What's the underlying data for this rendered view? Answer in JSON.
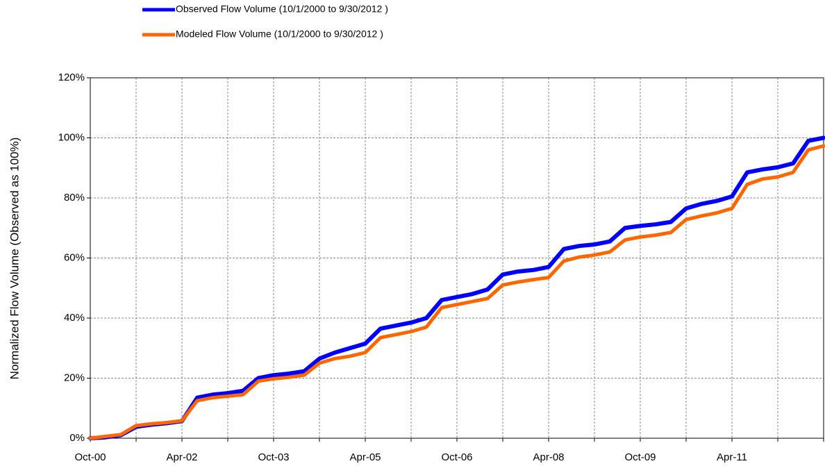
{
  "chart_data": {
    "type": "line",
    "y_label": "Normalized Flow Volume  (Observed as 100%)",
    "x": [
      "2000-10",
      "2001-01",
      "2001-04",
      "2001-07",
      "2001-10",
      "2002-01",
      "2002-04",
      "2002-07",
      "2002-10",
      "2003-01",
      "2003-04",
      "2003-07",
      "2003-10",
      "2004-01",
      "2004-04",
      "2004-07",
      "2004-10",
      "2005-01",
      "2005-04",
      "2005-07",
      "2005-10",
      "2006-01",
      "2006-04",
      "2006-07",
      "2006-10",
      "2007-01",
      "2007-04",
      "2007-07",
      "2007-10",
      "2008-01",
      "2008-04",
      "2008-07",
      "2008-10",
      "2009-01",
      "2009-04",
      "2009-07",
      "2009-10",
      "2010-01",
      "2010-04",
      "2010-07",
      "2010-10",
      "2011-01",
      "2011-04",
      "2011-07",
      "2011-10",
      "2012-01",
      "2012-04",
      "2012-07",
      "2012-10"
    ],
    "series": [
      {
        "name": "Observed Flow Volume (10/1/2000 to 9/30/2012 )",
        "color": "#0000ff",
        "values": [
          0,
          0.3,
          1,
          3.8,
          4.5,
          5,
          5.7,
          13.5,
          14.5,
          15,
          15.8,
          20,
          21,
          21.5,
          22.3,
          26.5,
          28.5,
          30,
          31.5,
          36.5,
          37.5,
          38.5,
          40,
          46,
          47,
          48,
          49.5,
          54.5,
          55.5,
          56,
          57,
          63,
          64,
          64.5,
          65.5,
          70,
          70.7,
          71.2,
          72,
          76.5,
          78,
          79,
          80.5,
          88.5,
          89.5,
          90.2,
          91.5,
          99,
          100
        ]
      },
      {
        "name": "Modeled Flow Volume (10/1/2000 to 9/30/2012 )",
        "color": "#ff6600",
        "values": [
          0,
          0.6,
          1.2,
          4.2,
          4.8,
          5.2,
          5.8,
          12.5,
          13.5,
          14,
          14.5,
          19,
          19.8,
          20.3,
          21,
          25,
          26.5,
          27.3,
          28.5,
          33.5,
          34.5,
          35.5,
          37,
          43.5,
          44.5,
          45.5,
          46.5,
          51,
          52,
          52.8,
          53.5,
          59,
          60.3,
          61,
          62,
          66,
          67,
          67.6,
          68.5,
          72.8,
          74,
          75,
          76.5,
          84.5,
          86.3,
          87,
          88.5,
          96,
          97.3
        ]
      }
    ],
    "xlim": [
      "2000-10",
      "2012-10"
    ],
    "xticks": [
      {
        "value": "2000-10",
        "label": "Oct-00"
      },
      {
        "value": "2001-07",
        "label": null
      },
      {
        "value": "2002-04",
        "label": "Apr-02"
      },
      {
        "value": "2003-01",
        "label": null
      },
      {
        "value": "2003-10",
        "label": "Oct-03"
      },
      {
        "value": "2004-07",
        "label": null
      },
      {
        "value": "2005-04",
        "label": "Apr-05"
      },
      {
        "value": "2006-01",
        "label": null
      },
      {
        "value": "2006-10",
        "label": "Oct-06"
      },
      {
        "value": "2007-07",
        "label": null
      },
      {
        "value": "2008-04",
        "label": "Apr-08"
      },
      {
        "value": "2009-01",
        "label": null
      },
      {
        "value": "2009-10",
        "label": "Oct-09"
      },
      {
        "value": "2010-07",
        "label": null
      },
      {
        "value": "2011-04",
        "label": "Apr-11"
      },
      {
        "value": "2012-01",
        "label": null
      },
      {
        "value": "2012-10",
        "label": null
      }
    ],
    "ylim": [
      0,
      120
    ],
    "yticks": [
      {
        "value": 0,
        "label": "0%"
      },
      {
        "value": 20,
        "label": "20%"
      },
      {
        "value": 40,
        "label": "40%"
      },
      {
        "value": 60,
        "label": "60%"
      },
      {
        "value": 80,
        "label": "80%"
      },
      {
        "value": 100,
        "label": "100%"
      },
      {
        "value": 120,
        "label": "120%"
      }
    ],
    "grid": true
  }
}
